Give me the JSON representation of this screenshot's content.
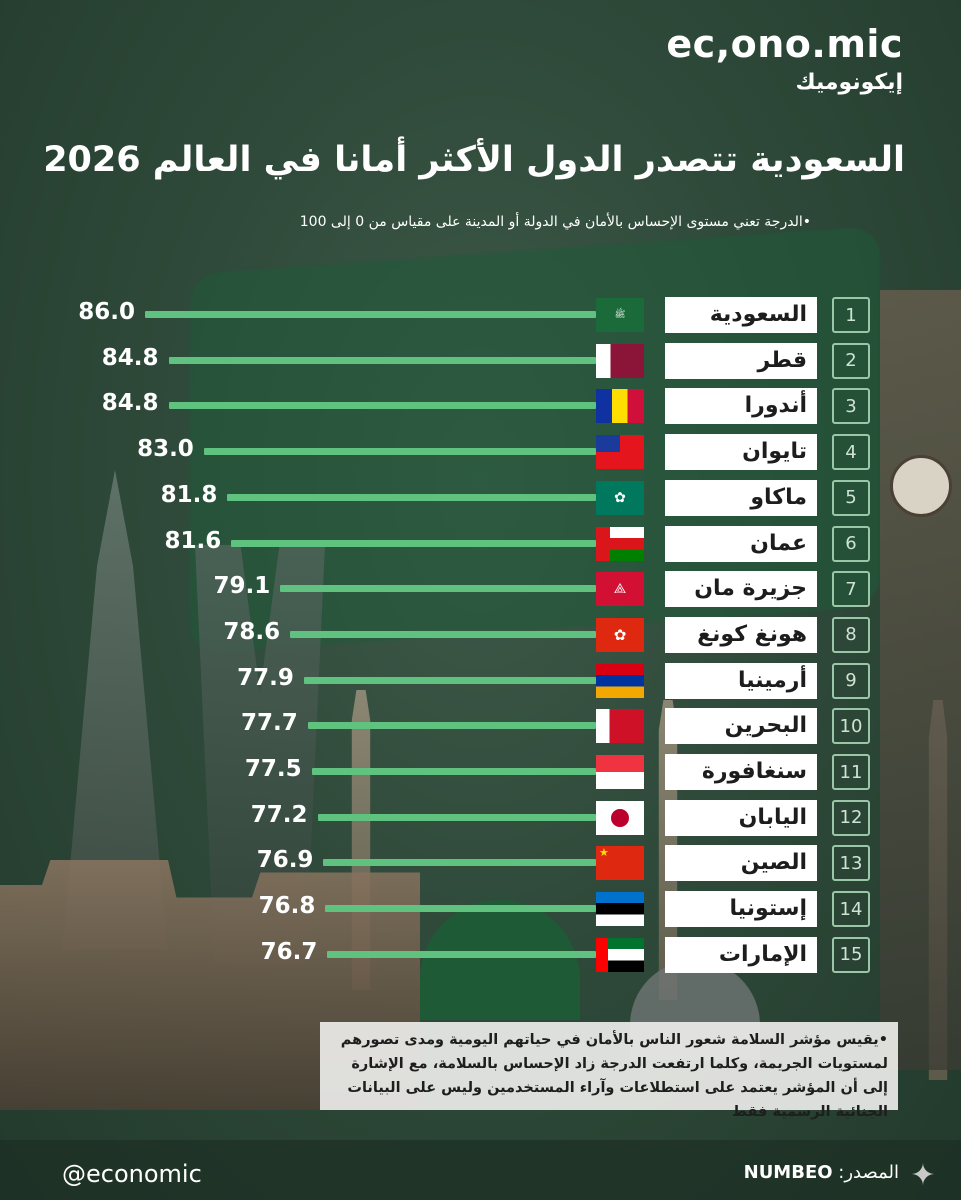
{
  "brand": {
    "name_en": "ec,ono.mic",
    "name_ar": "إيكونوميك"
  },
  "header": {
    "title": "السعودية تتصدر الدول الأكثر أمانا في العالم 2026",
    "subtitle": "•الدرجة  تعني مستوى الإحساس بالأمان في الدولة أو المدينة على مقياس من 0 إلى 100"
  },
  "chart_data": {
    "type": "bar",
    "orientation": "horizontal",
    "title": "السعودية تتصدر الدول الأكثر أمانا في العالم 2026",
    "ranks": [
      "1",
      "2",
      "3",
      "4",
      "5",
      "6",
      "7",
      "8",
      "9",
      "10",
      "11",
      "12",
      "13",
      "14",
      "15"
    ],
    "categories": [
      "السعودية",
      "قطر",
      "أندورا",
      "تايوان",
      "ماكاو",
      "عمان",
      "جزيرة مان",
      "هونغ كونغ",
      "أرمينيا",
      "البحرين",
      "سنغافورة",
      "اليابان",
      "الصين",
      "إستونيا",
      "الإمارات"
    ],
    "values": [
      86.0,
      84.8,
      84.8,
      83.0,
      81.8,
      81.6,
      79.1,
      78.6,
      77.9,
      77.7,
      77.5,
      77.2,
      76.9,
      76.8,
      76.7
    ],
    "value_labels": [
      "86.0",
      "84.8",
      "84.8",
      "83.0",
      "81.8",
      "81.6",
      "79.1",
      "78.6",
      "77.9",
      "77.7",
      "77.5",
      "77.2",
      "76.9",
      "76.8",
      "76.7"
    ],
    "flags": [
      "saudi-arabia-flag",
      "qatar-flag",
      "andorra-flag",
      "taiwan-flag",
      "macau-flag",
      "oman-flag",
      "isle-of-man-flag",
      "hong-kong-flag",
      "armenia-flag",
      "bahrain-flag",
      "singapore-flag",
      "japan-flag",
      "china-flag",
      "estonia-flag",
      "uae-flag"
    ],
    "bar_color": "#5fc27e",
    "grid": false
  },
  "footer": {
    "note": "•يقيس مؤشر السلامة  شعور الناس بالأمان في حياتهم اليومية ومدى تصورهم لمستويات الجريمة، وكلما ارتفعت الدرجة زاد الإحساس بالسلامة، مع الإشارة إلى أن المؤشر يعتمد على استطلاعات وآراء المستخدمين وليس على البيانات الجنائية الرسمية فقط",
    "handle": "@economic",
    "source_label": "المصدر:",
    "source_name": "NUMBEO"
  },
  "colors": {
    "accent": "#5fc27e",
    "background": "#2f4a3a"
  }
}
